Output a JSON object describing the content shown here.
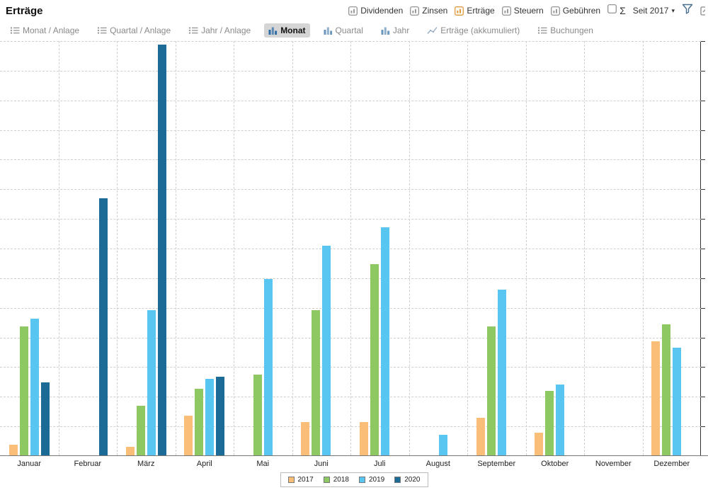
{
  "header": {
    "title": "Erträge",
    "toggles": [
      {
        "label": "Dividenden",
        "accent": false
      },
      {
        "label": "Zinsen",
        "accent": false
      },
      {
        "label": "Erträge",
        "accent": true
      },
      {
        "label": "Steuern",
        "accent": false
      },
      {
        "label": "Gebühren",
        "accent": false
      }
    ],
    "sigma_label": "Σ",
    "period_label": "Seit 2017",
    "period_caret": "▾"
  },
  "tabs": [
    {
      "label": "Monat / Anlage",
      "icon": "list",
      "active": false
    },
    {
      "label": "Quartal / Anlage",
      "icon": "list",
      "active": false
    },
    {
      "label": "Jahr / Anlage",
      "icon": "list",
      "active": false
    },
    {
      "label": "Monat",
      "icon": "bars",
      "active": true
    },
    {
      "label": "Quartal",
      "icon": "bars",
      "active": false
    },
    {
      "label": "Jahr",
      "icon": "bars",
      "active": false
    },
    {
      "label": "Erträge (akkumuliert)",
      "icon": "line",
      "active": false
    },
    {
      "label": "Buchungen",
      "icon": "list",
      "active": false
    }
  ],
  "chart_data": {
    "type": "bar",
    "title": "Erträge",
    "categories": [
      "Januar",
      "Februar",
      "März",
      "April",
      "Mai",
      "Juni",
      "Juli",
      "August",
      "September",
      "Oktober",
      "November",
      "Dezember"
    ],
    "series": [
      {
        "name": "2017",
        "color": "#FBBE78",
        "values": [
          2.5,
          0,
          2,
          9.5,
          0,
          8,
          8,
          0,
          9,
          5.5,
          0,
          27.5
        ]
      },
      {
        "name": "2018",
        "color": "#8DC863",
        "values": [
          31,
          0,
          12,
          16,
          19.5,
          35,
          46,
          0,
          31,
          15.5,
          0,
          31.5
        ]
      },
      {
        "name": "2019",
        "color": "#58C6F0",
        "values": [
          33,
          0,
          35,
          18.5,
          42.5,
          50.5,
          55,
          5,
          40,
          17,
          0,
          26
        ]
      },
      {
        "name": "2020",
        "color": "#1B6B96",
        "values": [
          17.5,
          62,
          99,
          19,
          0,
          0,
          0,
          0,
          0,
          0,
          0,
          0
        ]
      }
    ],
    "ylim": [
      0,
      100
    ],
    "y_axis_side": "right",
    "y_tick_labels_visible": false,
    "grid": true,
    "grid_divisions": 14,
    "legend_position": "bottom"
  }
}
